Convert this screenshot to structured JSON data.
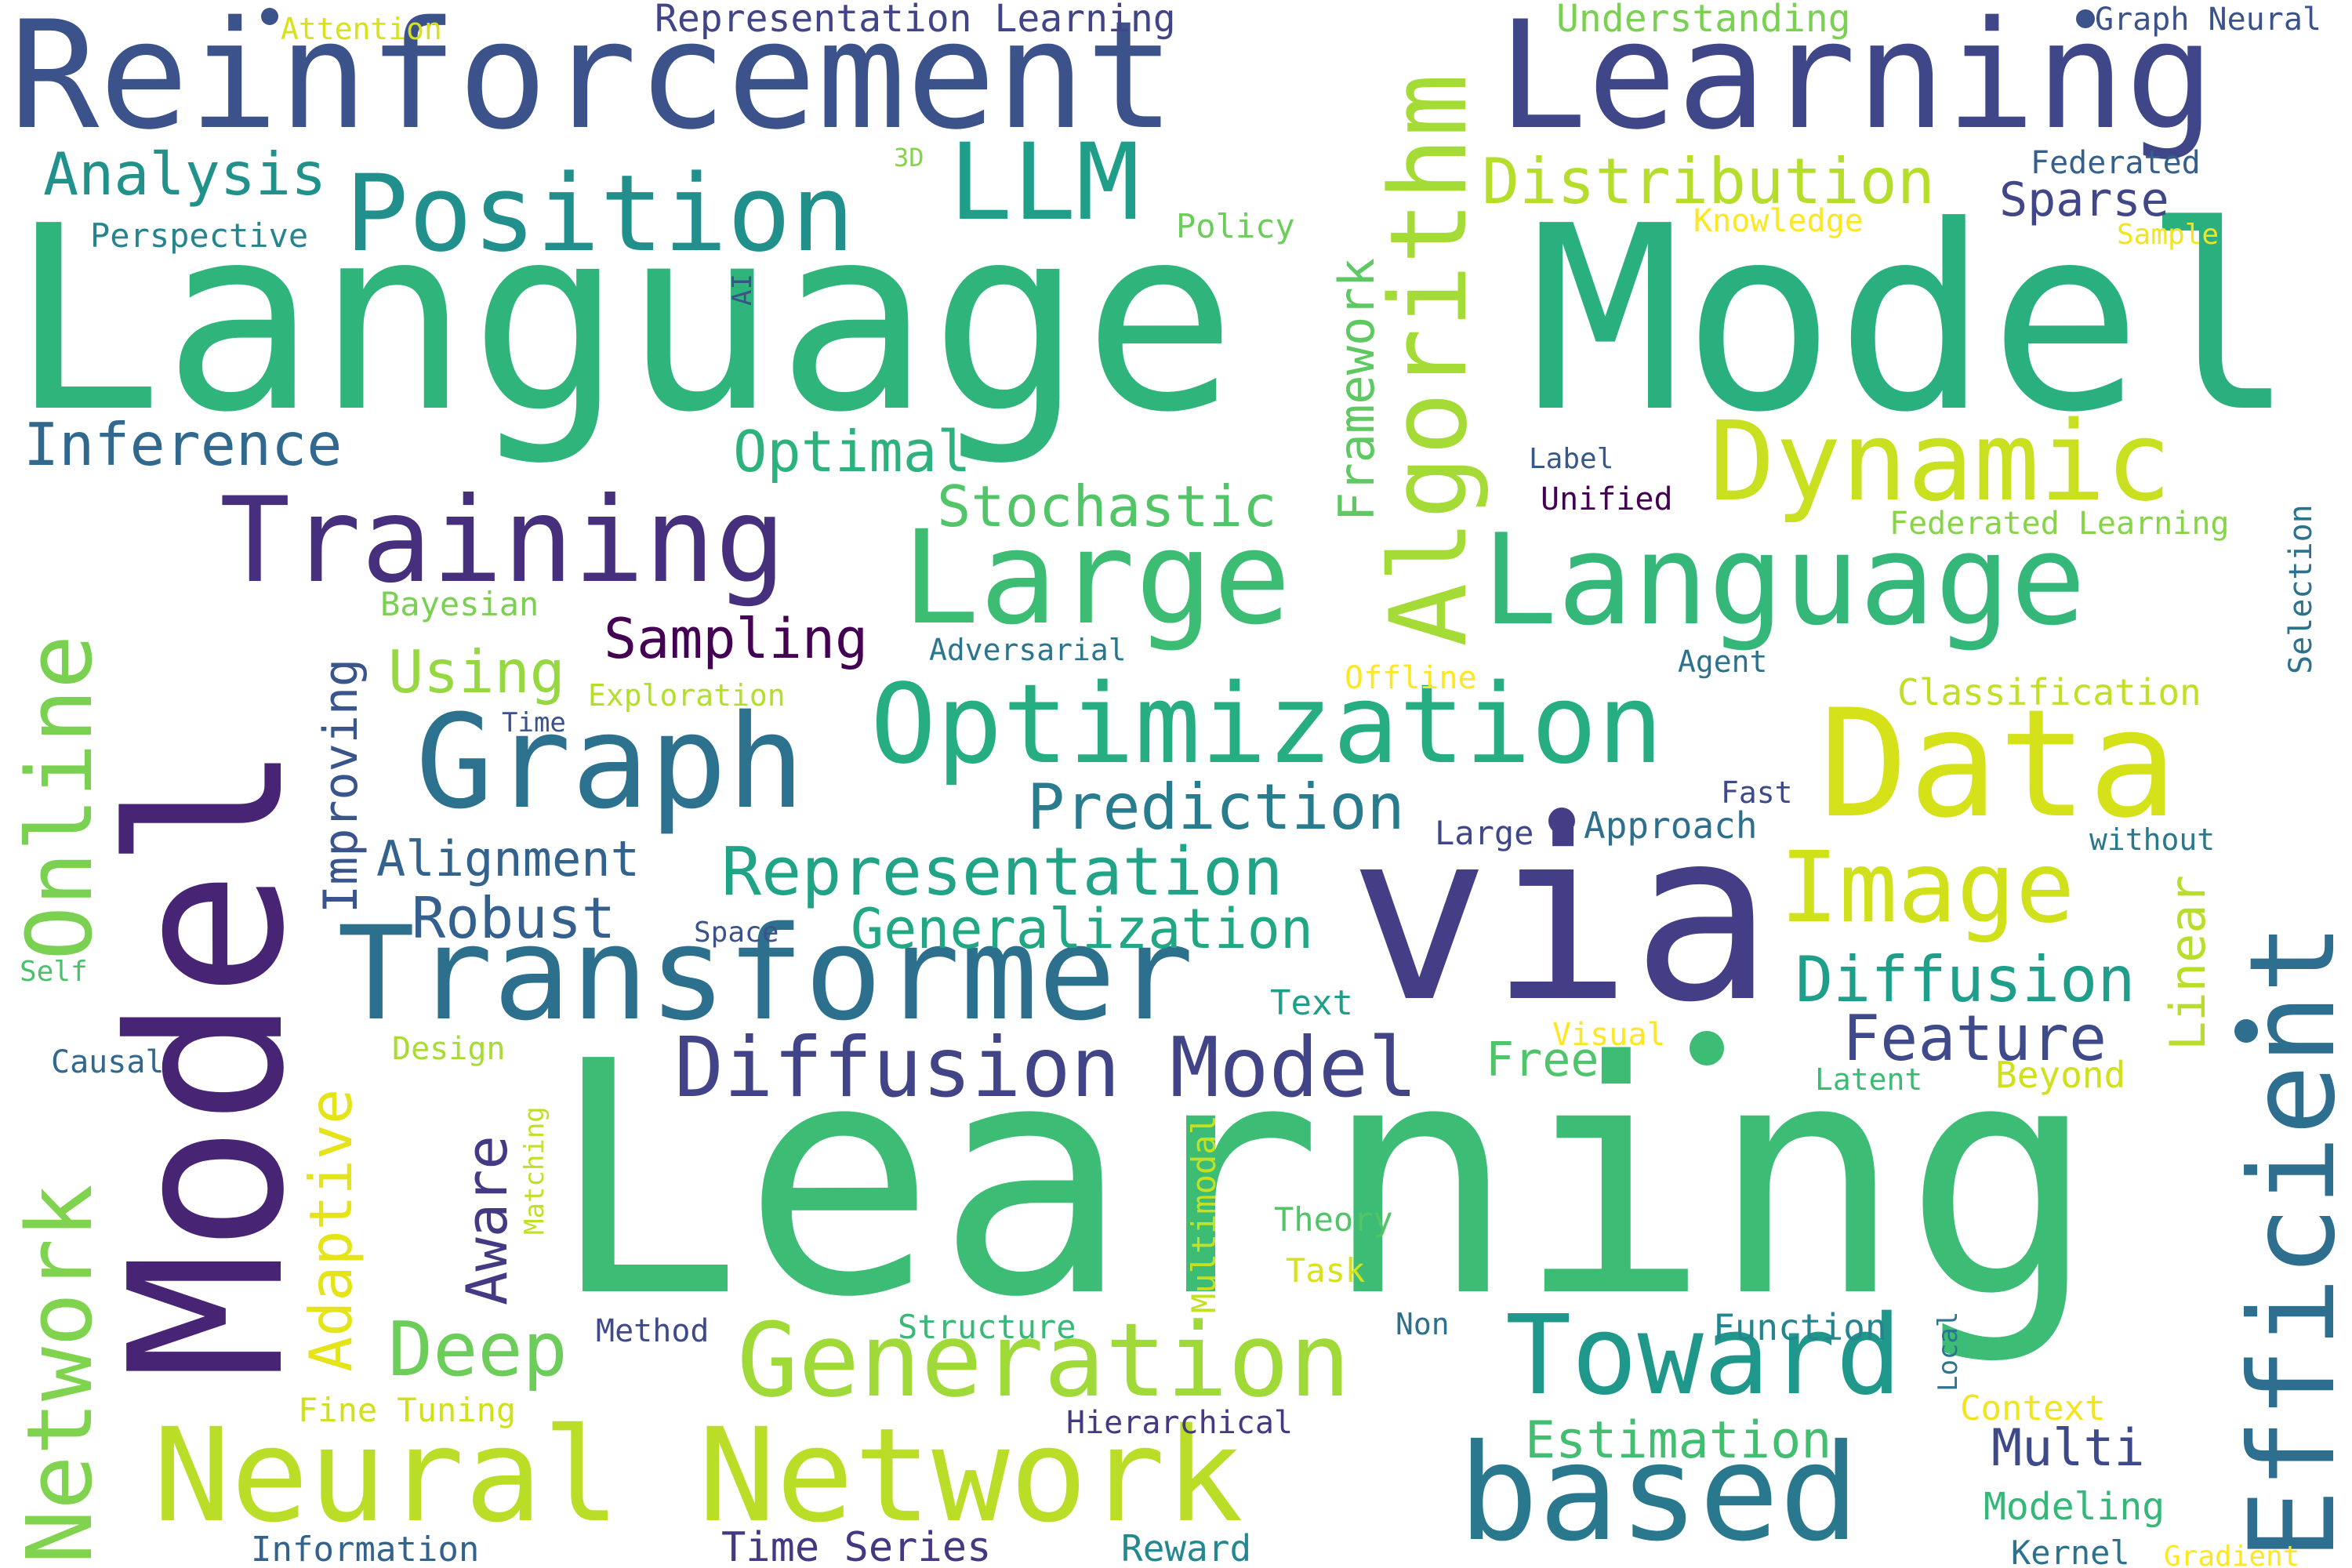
{
  "words": [
    {
      "text": "Reinforcement",
      "color": "#3b528b"
    },
    {
      "text": "Learning",
      "color": "#3f4788"
    },
    {
      "text": "Language",
      "color": "#2fb47c"
    },
    {
      "text": "Model",
      "color": "#2ab07f"
    },
    {
      "text": "Learning",
      "color": "#3cbc74"
    },
    {
      "text": "Model",
      "color": "#482475"
    },
    {
      "text": "via",
      "color": "#433e85"
    },
    {
      "text": "Position",
      "color": "#21908c"
    },
    {
      "text": "LLM",
      "color": "#1f9e89"
    },
    {
      "text": "Algorithm",
      "color": "#a5db36"
    },
    {
      "text": "Distribution",
      "color": "#b5de2b"
    },
    {
      "text": "Training",
      "color": "#46307e"
    },
    {
      "text": "Large",
      "color": "#3dbc74"
    },
    {
      "text": "Language",
      "color": "#35b779"
    },
    {
      "text": "Dynamic",
      "color": "#c8e020"
    },
    {
      "text": "Optimization",
      "color": "#26ad81"
    },
    {
      "text": "Data",
      "color": "#d5e21a"
    },
    {
      "text": "Graph",
      "color": "#2c728e"
    },
    {
      "text": "Transformer",
      "color": "#2d708e"
    },
    {
      "text": "Efficient",
      "color": "#2e6e8e"
    },
    {
      "text": "Online",
      "color": "#7ad151"
    },
    {
      "text": "Network",
      "color": "#7fd34e"
    },
    {
      "text": "Neural Network",
      "color": "#bade28"
    },
    {
      "text": "Generation",
      "color": "#a0da39"
    },
    {
      "text": "based",
      "color": "#2a788e"
    },
    {
      "text": "Toward",
      "color": "#1f988b"
    },
    {
      "text": "Image",
      "color": "#d0e11c"
    },
    {
      "text": "Representation",
      "color": "#20a386"
    },
    {
      "text": "Generalization",
      "color": "#22a785"
    },
    {
      "text": "Diffusion Model",
      "color": "#414487"
    },
    {
      "text": "Prediction",
      "color": "#297b8e"
    },
    {
      "text": "Diffusion",
      "color": "#1f9e89"
    },
    {
      "text": "Feature",
      "color": "#3e4a89"
    },
    {
      "text": "Deep",
      "color": "#6ccd5a"
    },
    {
      "text": "Analysis",
      "color": "#21918c"
    },
    {
      "text": "Inference",
      "color": "#31688e"
    },
    {
      "text": "Optimal",
      "color": "#2db27d"
    },
    {
      "text": "Stochastic",
      "color": "#52c569"
    },
    {
      "text": "Framework",
      "color": "#5ec962"
    },
    {
      "text": "Sparse",
      "color": "#404688"
    },
    {
      "text": "Sampling",
      "color": "#440154"
    },
    {
      "text": "Using",
      "color": "#95d840"
    },
    {
      "text": "Alignment",
      "color": "#33638d"
    },
    {
      "text": "Robust",
      "color": "#355f8d"
    },
    {
      "text": "Improving",
      "color": "#3a548c"
    },
    {
      "text": "Adaptive",
      "color": "#e5e419"
    },
    {
      "text": "Aware",
      "color": "#443a83"
    },
    {
      "text": "Estimation",
      "color": "#42be71"
    },
    {
      "text": "Multi",
      "color": "#3e4989"
    },
    {
      "text": "Linear",
      "color": "#b8de29"
    },
    {
      "text": "Representation Learning",
      "color": "#414487"
    },
    {
      "text": "Understanding",
      "color": "#7ad151"
    },
    {
      "text": "Graph Neural",
      "color": "#3b528b"
    },
    {
      "text": "Attention",
      "color": "#d8e219"
    },
    {
      "text": "Federated",
      "color": "#355f8d"
    },
    {
      "text": "Knowledge",
      "color": "#fde725"
    },
    {
      "text": "Sample",
      "color": "#f1e51d"
    },
    {
      "text": "Perspective",
      "color": "#25848e"
    },
    {
      "text": "Policy",
      "color": "#6ccd5a"
    },
    {
      "text": "3D",
      "color": "#84d44b"
    },
    {
      "text": "AI",
      "color": "#3b528b"
    },
    {
      "text": "Label",
      "color": "#38588c"
    },
    {
      "text": "Unified",
      "color": "#440154"
    },
    {
      "text": "Federated Learning",
      "color": "#86d549"
    },
    {
      "text": "Selection",
      "color": "#2c728e"
    },
    {
      "text": "Bayesian",
      "color": "#7ad151"
    },
    {
      "text": "Adversarial",
      "color": "#2a768e"
    },
    {
      "text": "Offline",
      "color": "#fde725"
    },
    {
      "text": "Agent",
      "color": "#2c718e"
    },
    {
      "text": "Classification",
      "color": "#c2df23"
    },
    {
      "text": "Exploration",
      "color": "#b5de2b"
    },
    {
      "text": "Time",
      "color": "#3b528b"
    },
    {
      "text": "Fast",
      "color": "#3e4989"
    },
    {
      "text": "Large",
      "color": "#3f4788"
    },
    {
      "text": "Approach",
      "color": "#2e6f8e"
    },
    {
      "text": "without",
      "color": "#2a788e"
    },
    {
      "text": "Space",
      "color": "#3b528b"
    },
    {
      "text": "Self",
      "color": "#4ac16d"
    },
    {
      "text": "Text",
      "color": "#1f9e89"
    },
    {
      "text": "Causal",
      "color": "#31688e"
    },
    {
      "text": "Design",
      "color": "#a8db34"
    },
    {
      "text": "Visual",
      "color": "#fde725"
    },
    {
      "text": "Free",
      "color": "#50c46a"
    },
    {
      "text": "Latent",
      "color": "#3cbb75"
    },
    {
      "text": "Beyond",
      "color": "#d0e11c"
    },
    {
      "text": "Matching",
      "color": "#c2df23"
    },
    {
      "text": "Multimodal",
      "color": "#c5e021"
    },
    {
      "text": "Theory",
      "color": "#52c569"
    },
    {
      "text": "Task",
      "color": "#d8e219"
    },
    {
      "text": "Method",
      "color": "#3e4a89"
    },
    {
      "text": "Structure",
      "color": "#38b977"
    },
    {
      "text": "Non",
      "color": "#2d708e"
    },
    {
      "text": "Function",
      "color": "#25858e"
    },
    {
      "text": "Local",
      "color": "#2b758e"
    },
    {
      "text": "Fine Tuning",
      "color": "#d0e11c"
    },
    {
      "text": "Hierarchical",
      "color": "#443a83"
    },
    {
      "text": "Context",
      "color": "#f1e51d"
    },
    {
      "text": "Modeling",
      "color": "#35b779"
    },
    {
      "text": "Information",
      "color": "#33638d"
    },
    {
      "text": "Time Series",
      "color": "#453781"
    },
    {
      "text": "Reward",
      "color": "#23898e"
    },
    {
      "text": "Kernel",
      "color": "#2c728e"
    },
    {
      "text": "Gradient",
      "color": "#fde725"
    }
  ]
}
